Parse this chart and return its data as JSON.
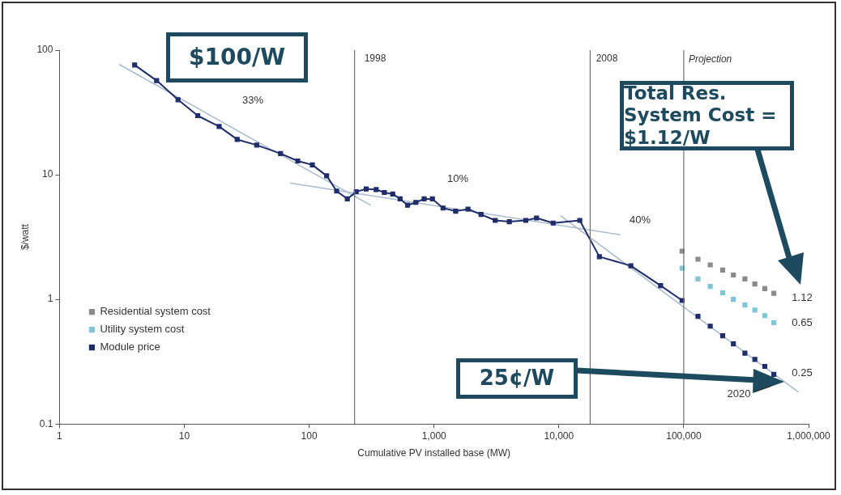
{
  "chart_data": {
    "type": "line",
    "xlabel": "Cumulative PV installed base (MW)",
    "ylabel": "$/watt",
    "log": "xy",
    "xlim": [
      1,
      1000000
    ],
    "ylim": [
      0.1,
      100
    ],
    "xticks": [
      1,
      10,
      100,
      {
        "value": 1000,
        "label": "1,000"
      },
      {
        "value": 10000,
        "label": "10,000"
      },
      {
        "value": 100000,
        "label": "100,000"
      },
      {
        "value": 1000000,
        "label": "1,000,000"
      }
    ],
    "yticks": [
      0.1,
      1,
      10,
      100
    ],
    "grid": false,
    "legend": "left",
    "marker": "square",
    "series": [
      {
        "name": "Residential system cost",
        "type": "scatter",
        "color": "#8a8a8a",
        "x": [
          97000,
          130000,
          163000,
          205000,
          250000,
          309000,
          371000,
          446000,
          527000
        ],
        "values": [
          2.44,
          2.1,
          1.89,
          1.72,
          1.57,
          1.46,
          1.33,
          1.22,
          1.12
        ]
      },
      {
        "name": "Utility system cost",
        "type": "scatter",
        "color": "#7fc6d8",
        "x": [
          97000,
          130000,
          163000,
          205000,
          250000,
          309000,
          371000,
          446000,
          527000
        ],
        "values": [
          1.78,
          1.46,
          1.27,
          1.13,
          1.0,
          0.9,
          0.82,
          0.74,
          0.65
        ]
      },
      {
        "name": "Module price",
        "color": "#1f2d6b",
        "x": [
          4,
          6,
          8.9,
          12.8,
          19,
          26.5,
          38,
          59,
          81,
          106,
          138,
          166,
          202,
          238,
          286,
          344,
          400,
          467,
          535,
          614,
          715,
          833,
          970,
          1180,
          1490,
          1870,
          2380,
          3090,
          4010,
          5430,
          6620,
          9000,
          14700,
          21100,
          37700,
          65300,
          97000
        ],
        "values": [
          76,
          57,
          40,
          29.8,
          24.4,
          19.2,
          17.3,
          14.8,
          12.9,
          12.0,
          9.8,
          7.4,
          6.4,
          7.3,
          7.7,
          7.6,
          7.2,
          7.0,
          6.4,
          5.7,
          6.0,
          6.4,
          6.4,
          5.4,
          5.1,
          5.3,
          4.8,
          4.3,
          4.2,
          4.3,
          4.5,
          4.1,
          4.3,
          2.2,
          1.86,
          1.29,
          0.98
        ]
      },
      {
        "type": "scatter",
        "color": "#1f2d6b",
        "x": [
          130000,
          163000,
          205000,
          250000,
          309000,
          371000,
          446000,
          527000
        ],
        "values": [
          0.73,
          0.61,
          0.51,
          0.44,
          0.37,
          0.33,
          0.29,
          0.25
        ]
      },
      {
        "marker": "none",
        "color": "#a9bccd",
        "x": [
          3,
          310
        ],
        "values": [
          77,
          5.7
        ]
      },
      {
        "marker": "none",
        "color": "#a9bccd",
        "x": [
          70,
          30900
        ],
        "values": [
          8.6,
          3.3
        ]
      },
      {
        "marker": "none",
        "color": "#a9bccd",
        "x": [
          10300,
          830000
        ],
        "values": [
          4.7,
          0.18
        ]
      }
    ],
    "ref_lines": [
      {
        "axis": "x",
        "value": 231,
        "color": "#707070"
      },
      {
        "axis": "x",
        "value": 17800,
        "color": "#707070"
      },
      {
        "axis": "x",
        "value": 100000,
        "label": "Projection",
        "color": "#707070"
      }
    ],
    "annotations": [
      "33%",
      "10%",
      "40%",
      "1.12",
      "0.65",
      "0.25",
      "2020",
      "1998",
      "2008",
      "$100/W",
      "Total Res. System Cost = $1.12/W",
      "25¢/W"
    ]
  }
}
